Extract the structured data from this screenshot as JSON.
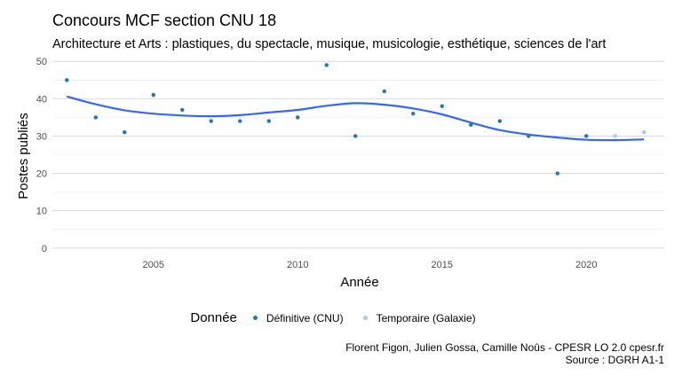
{
  "chart_data": {
    "type": "scatter",
    "title": "Concours MCF section CNU 18",
    "subtitle": "Architecture et Arts : plastiques, du spectacle, musique, musicologie, esthétique, sciences de l'art",
    "xlabel": "Année",
    "ylabel": "Postes publiés",
    "xlim": [
      2001.5,
      2022.7
    ],
    "ylim": [
      -1,
      51
    ],
    "x_ticks": [
      2005,
      2010,
      2015,
      2020
    ],
    "y_ticks": [
      0,
      10,
      20,
      30,
      40,
      50
    ],
    "grid": true,
    "legend_position": "bottom",
    "legend_title": "Donnée",
    "series": [
      {
        "name": "Définitive (CNU)",
        "color": "#1f78b4",
        "x": [
          2002,
          2003,
          2004,
          2005,
          2006,
          2007,
          2008,
          2009,
          2010,
          2011,
          2012,
          2013,
          2014,
          2015,
          2016,
          2017,
          2018,
          2019,
          2020
        ],
        "y": [
          45,
          35,
          31,
          41,
          37,
          34,
          34,
          34,
          35,
          49,
          30,
          42,
          36,
          38,
          33,
          34,
          30,
          20,
          30
        ]
      },
      {
        "name": "Temporaire (Galaxie)",
        "color": "#a6cee3",
        "x": [
          2021,
          2022
        ],
        "y": [
          30,
          31
        ]
      }
    ],
    "smooth": {
      "color": "#3366ff",
      "x": [
        2002,
        2003,
        2004,
        2005,
        2006,
        2007,
        2008,
        2009,
        2010,
        2011,
        2012,
        2013,
        2014,
        2015,
        2016,
        2017,
        2018,
        2019,
        2020,
        2021,
        2022
      ],
      "y": [
        40.6,
        38.5,
        36.9,
        36.0,
        35.5,
        35.3,
        35.6,
        36.3,
        37.0,
        38.1,
        38.8,
        38.4,
        37.4,
        35.8,
        33.6,
        31.6,
        30.4,
        29.6,
        29.0,
        28.9,
        29.1
      ]
    }
  },
  "caption": {
    "line1": "Florent Figon, Julien Gossa, Camille Noûs - CPESR LO 2.0 cpesr.fr",
    "line2": "Source : DGRH A1-1"
  }
}
